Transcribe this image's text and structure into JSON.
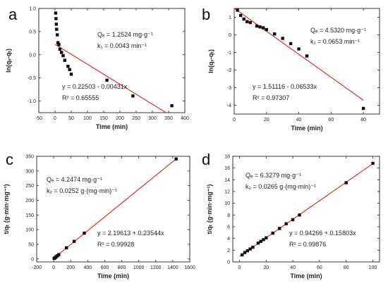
{
  "chart_data": [
    {
      "type": "scatter",
      "panel_label": "a",
      "xlabel": "Time (min)",
      "ylabel": "ln(qₑ-qₜ)",
      "xlim": [
        -50,
        400
      ],
      "ylim": [
        -1.25,
        1.0
      ],
      "xticks": [
        -50,
        0,
        50,
        100,
        150,
        200,
        250,
        300,
        350,
        400
      ],
      "yticks": [
        -1.0,
        -0.5,
        0.0,
        0.5,
        1.0
      ],
      "ytick_decimals": 1,
      "points": [
        [
          2,
          0.9
        ],
        [
          3,
          0.78
        ],
        [
          4,
          0.66
        ],
        [
          5,
          0.55
        ],
        [
          7,
          0.43
        ],
        [
          9,
          0.26
        ],
        [
          12,
          0.22
        ],
        [
          15,
          0.12
        ],
        [
          20,
          0.05
        ],
        [
          25,
          -0.02
        ],
        [
          30,
          -0.12
        ],
        [
          40,
          -0.25
        ],
        [
          45,
          -0.32
        ],
        [
          50,
          -0.42
        ],
        [
          160,
          -0.55
        ],
        [
          240,
          -0.89
        ],
        [
          360,
          -1.1
        ]
      ],
      "fit_line": {
        "x": [
          0,
          360
        ],
        "y": [
          0.22503,
          -1.32657
        ]
      },
      "annotations": [
        {
          "text": "Qₑ = 1.2524 mg·g⁻¹"
        },
        {
          "text": "k₁ = 0.0043 min⁻¹"
        },
        {
          "text": "y = 0.22503 - 0.00431x"
        },
        {
          "text": "R² = 0.65555"
        }
      ]
    },
    {
      "type": "scatter",
      "panel_label": "b",
      "xlabel": "Time (min)",
      "ylabel": "ln(qₑ-qₜ)",
      "xlim": [
        0,
        90
      ],
      "ylim": [
        -4.5,
        1.5
      ],
      "xticks": [
        0,
        20,
        40,
        60,
        80
      ],
      "yticks": [
        -4,
        -3,
        -2,
        -1,
        0,
        1
      ],
      "ytick_decimals": 0,
      "points": [
        [
          2,
          1.4
        ],
        [
          4,
          1.1
        ],
        [
          6,
          0.9
        ],
        [
          8,
          0.75
        ],
        [
          10,
          0.7
        ],
        [
          14,
          0.5
        ],
        [
          16,
          0.45
        ],
        [
          18,
          0.4
        ],
        [
          20,
          0.3
        ],
        [
          25,
          0.05
        ],
        [
          30,
          -0.2
        ],
        [
          35,
          -0.5
        ],
        [
          40,
          -0.8
        ],
        [
          45,
          -1.2
        ],
        [
          80,
          -4.18
        ]
      ],
      "fit_line": {
        "x": [
          0,
          80
        ],
        "y": [
          1.51116,
          -3.71524
        ]
      },
      "annotations": [
        {
          "text": "Qₑ = 4.5320 mg·g⁻¹"
        },
        {
          "text": "k₁ = 0.0653 min⁻¹"
        },
        {
          "text": "y = 1.51116 - 0.06533x"
        },
        {
          "text": "R² = 0.97307"
        }
      ]
    },
    {
      "type": "scatter",
      "panel_label": "c",
      "xlabel": "Time (min)",
      "ylabel": "t/qₜ (g·min·mg⁻¹)",
      "xlim": [
        -200,
        1600
      ],
      "ylim": [
        -10,
        350
      ],
      "xticks": [
        -200,
        0,
        200,
        400,
        600,
        800,
        1000,
        1200,
        1400,
        1600
      ],
      "yticks": [
        0,
        50,
        100,
        150,
        200,
        250,
        300,
        350
      ],
      "ytick_decimals": 0,
      "points": [
        [
          5,
          2
        ],
        [
          10,
          3
        ],
        [
          20,
          5
        ],
        [
          30,
          8
        ],
        [
          45,
          11
        ],
        [
          60,
          15
        ],
        [
          150,
          38
        ],
        [
          240,
          60
        ],
        [
          360,
          88
        ],
        [
          1440,
          341
        ]
      ],
      "fit_line": {
        "x": [
          0,
          1440
        ],
        "y": [
          2.19613,
          341.23
        ]
      },
      "annotations": [
        {
          "text": "Qₑ = 4.2474 mg·g⁻¹"
        },
        {
          "text": "k₂ = 0.0252 g·(mg·min)⁻¹"
        },
        {
          "text": "y = 2.19613 + 0.23544x"
        },
        {
          "text": "R² = 0.99928"
        }
      ]
    },
    {
      "type": "scatter",
      "panel_label": "d",
      "xlabel": "Time (min)",
      "ylabel": "t/qₜ (g·min·mg⁻¹)",
      "xlim": [
        -5,
        105
      ],
      "ylim": [
        0,
        18
      ],
      "xticks": [
        0,
        20,
        40,
        60,
        80,
        100
      ],
      "yticks": [
        0,
        2,
        4,
        6,
        8,
        10,
        12,
        14,
        16,
        18
      ],
      "ytick_decimals": 0,
      "points": [
        [
          2,
          1.2
        ],
        [
          4,
          1.6
        ],
        [
          6,
          1.9
        ],
        [
          8,
          2.2
        ],
        [
          10,
          2.5
        ],
        [
          14,
          3.2
        ],
        [
          16,
          3.5
        ],
        [
          18,
          3.8
        ],
        [
          20,
          4.1
        ],
        [
          25,
          4.9
        ],
        [
          30,
          5.7
        ],
        [
          35,
          6.5
        ],
        [
          40,
          7.2
        ],
        [
          45,
          8.0
        ],
        [
          80,
          13.5
        ],
        [
          100,
          16.8
        ]
      ],
      "fit_line": {
        "x": [
          0,
          100
        ],
        "y": [
          0.94266,
          16.74566
        ]
      },
      "annotations": [
        {
          "text": "Qₑ = 6.3279 mg·g⁻¹"
        },
        {
          "text": "k₂ = 0.0265 g·(mg·min)⁻¹"
        },
        {
          "text": "y = 0.94266 + 0.15803x"
        },
        {
          "text": "R² = 0.99876"
        }
      ]
    }
  ],
  "colors": {
    "fit_line": "#e02020",
    "points": "#111111",
    "axis": "#222222"
  }
}
